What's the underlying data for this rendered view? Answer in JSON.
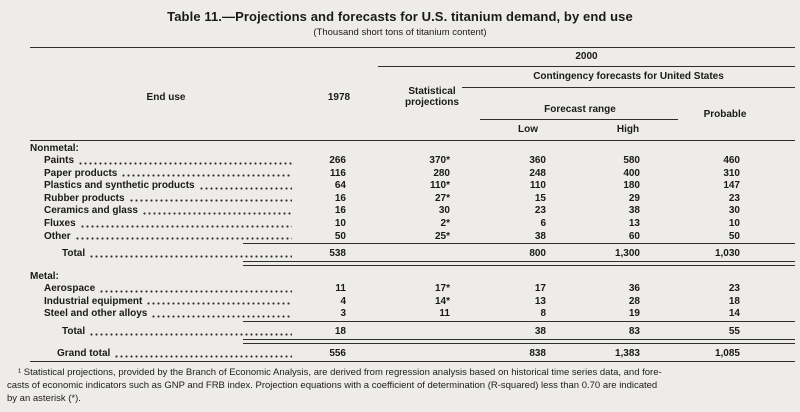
{
  "title": "Table 11.—Projections and forecasts for U.S. titanium demand, by end use",
  "subtitle": "(Thousand short tons of titanium content)",
  "header": {
    "end_use": "End use",
    "y1978": "1978",
    "stat_proj": "Statistical projections",
    "year2000": "2000",
    "contingency": "Contingency forecasts for United States",
    "forecast_range": "Forecast range",
    "low": "Low",
    "high": "High",
    "probable": "Probable"
  },
  "sections": [
    {
      "name": "Nonmetal:",
      "rows": [
        {
          "label": "Paints",
          "v1978": "266",
          "stat": "370*",
          "low": "360",
          "high": "580",
          "prob": "460"
        },
        {
          "label": "Paper products",
          "v1978": "116",
          "stat": "280",
          "low": "248",
          "high": "400",
          "prob": "310"
        },
        {
          "label": "Plastics and synthetic products",
          "v1978": "64",
          "stat": "110*",
          "low": "110",
          "high": "180",
          "prob": "147"
        },
        {
          "label": "Rubber products",
          "v1978": "16",
          "stat": "27*",
          "low": "15",
          "high": "29",
          "prob": "23"
        },
        {
          "label": "Ceramics and glass",
          "v1978": "16",
          "stat": "30",
          "low": "23",
          "high": "38",
          "prob": "30"
        },
        {
          "label": "Fluxes",
          "v1978": "10",
          "stat": "2*",
          "low": "6",
          "high": "13",
          "prob": "10"
        },
        {
          "label": "Other",
          "v1978": "50",
          "stat": "25*",
          "low": "38",
          "high": "60",
          "prob": "50"
        }
      ],
      "total": {
        "label": "Total",
        "v1978": "538",
        "stat": "",
        "low": "800",
        "high": "1,300",
        "prob": "1,030"
      }
    },
    {
      "name": "Metal:",
      "rows": [
        {
          "label": "Aerospace",
          "v1978": "11",
          "stat": "17*",
          "low": "17",
          "high": "36",
          "prob": "23"
        },
        {
          "label": "Industrial equipment",
          "v1978": "4",
          "stat": "14*",
          "low": "13",
          "high": "28",
          "prob": "18"
        },
        {
          "label": "Steel and other alloys",
          "v1978": "3",
          "stat": "11",
          "low": "8",
          "high": "19",
          "prob": "14"
        }
      ],
      "total": {
        "label": "Total",
        "v1978": "18",
        "stat": "",
        "low": "38",
        "high": "83",
        "prob": "55"
      }
    }
  ],
  "grand_total": {
    "label": "Grand total",
    "v1978": "556",
    "stat": "",
    "low": "838",
    "high": "1,383",
    "prob": "1,085"
  },
  "footnote": {
    "line1": "¹ Statistical projections, provided by the Branch of Economic Analysis, are derived from regression analysis based on historical time series data, and fore-",
    "line2": "casts of economic indicators such as GNP and FRB index. Projection equations with a coefficient of determination (R-squared) less than 0.70 are indicated",
    "line3": "by an asterisk (*)."
  }
}
